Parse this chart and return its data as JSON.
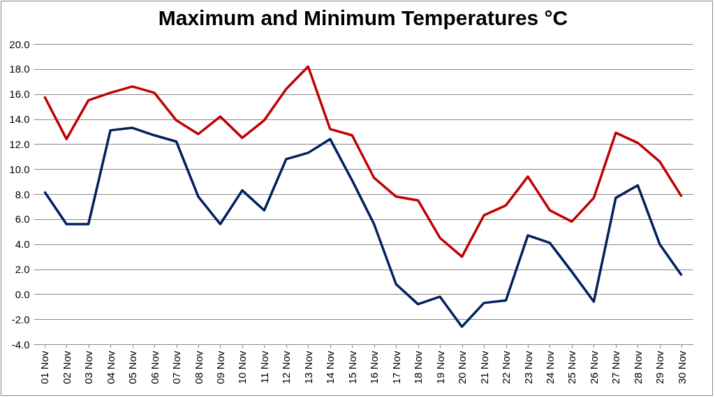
{
  "chart_data": {
    "type": "line",
    "title": "Maximum and Minimum Temperatures °C",
    "categories": [
      "01 Nov",
      "02 Nov",
      "03 Nov",
      "04 Nov",
      "05 Nov",
      "06 Nov",
      "07 Nov",
      "08 Nov",
      "09 Nov",
      "10 Nov",
      "11 Nov",
      "12 Nov",
      "13 Nov",
      "14 Nov",
      "15 Nov",
      "16 Nov",
      "17 Nov",
      "18 Nov",
      "19 Nov",
      "20 Nov",
      "21 Nov",
      "22 Nov",
      "23 Nov",
      "24 Nov",
      "25 Nov",
      "26 Nov",
      "27 Nov",
      "28 Nov",
      "29 Nov",
      "30 Nov"
    ],
    "series": [
      {
        "color": "#c00000",
        "values": [
          15.8,
          12.4,
          15.5,
          16.1,
          16.6,
          16.1,
          13.9,
          12.8,
          14.2,
          12.5,
          13.9,
          16.4,
          18.2,
          13.2,
          12.7,
          9.3,
          7.8,
          7.5,
          4.5,
          3.0,
          6.3,
          7.1,
          9.4,
          6.7,
          5.8,
          7.7,
          12.9,
          12.1,
          10.6,
          7.8
        ]
      },
      {
        "color": "#002060",
        "values": [
          8.2,
          5.6,
          5.6,
          13.1,
          13.3,
          12.7,
          12.2,
          7.8,
          5.6,
          8.3,
          6.7,
          10.8,
          11.3,
          12.4,
          9.1,
          5.6,
          0.8,
          -0.8,
          -0.2,
          -2.6,
          -0.7,
          -0.5,
          4.7,
          4.1,
          1.8,
          -0.6,
          7.7,
          8.7,
          4.0,
          1.5
        ]
      }
    ],
    "ylim": [
      -4,
      20
    ],
    "yticks": [
      {
        "value": -4,
        "label": "-4.0"
      },
      {
        "value": -2,
        "label": "-2.0"
      },
      {
        "value": 0,
        "label": "0.0"
      },
      {
        "value": 2,
        "label": "2.0"
      },
      {
        "value": 4,
        "label": "4.0"
      },
      {
        "value": 6,
        "label": "6.0"
      },
      {
        "value": 8,
        "label": "8.0"
      },
      {
        "value": 10,
        "label": "10.0"
      },
      {
        "value": 12,
        "label": "12.0"
      },
      {
        "value": 14,
        "label": "14.0"
      },
      {
        "value": 16,
        "label": "16.0"
      },
      {
        "value": 18,
        "label": "18.0"
      },
      {
        "value": 20,
        "label": "20.0"
      }
    ],
    "grid": "y",
    "legend": false,
    "marker": "none",
    "line_style": "solid"
  }
}
